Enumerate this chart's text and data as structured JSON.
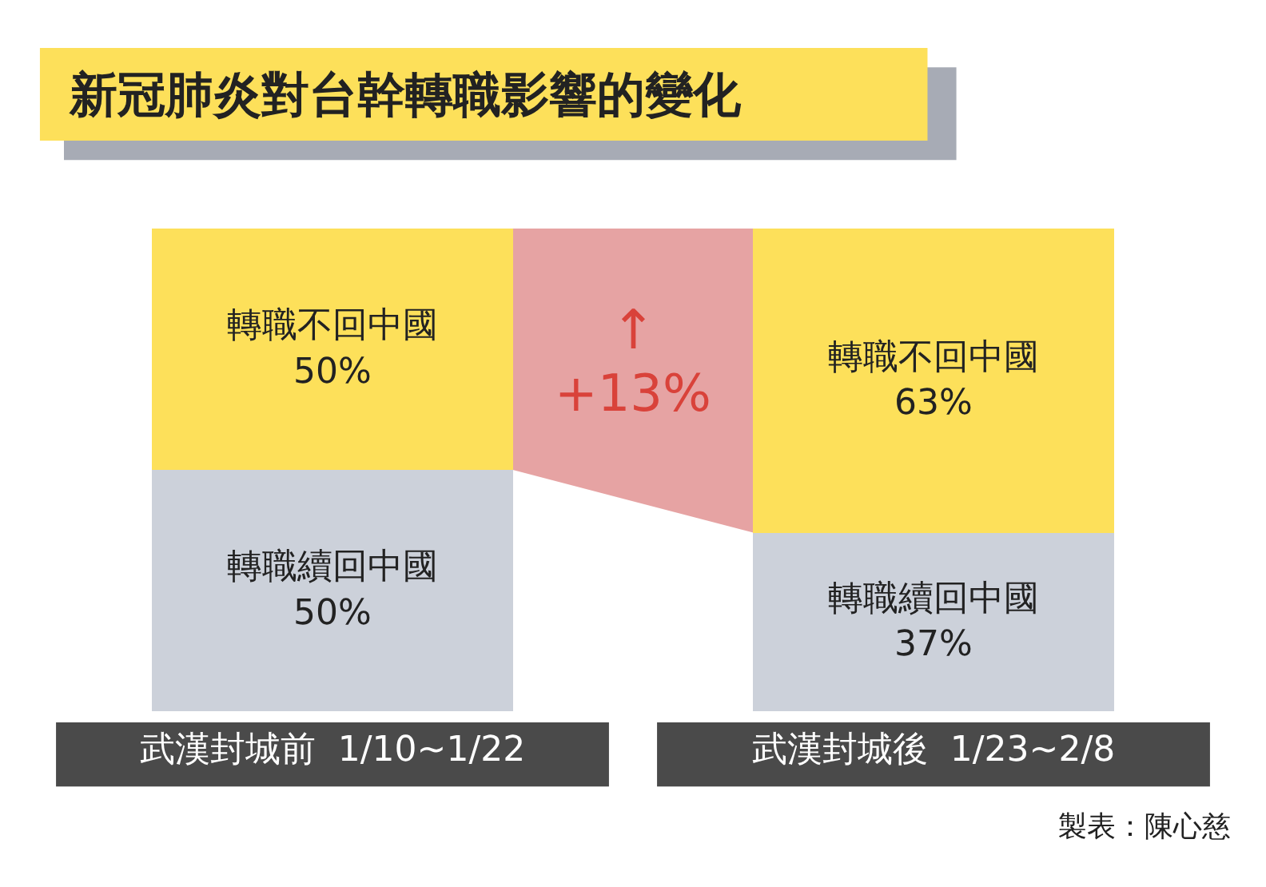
{
  "chart_data": {
    "type": "bar",
    "title": "新冠肺炎對台幹轉職影響的變化",
    "categories": [
      "武漢封城前  1/10~1/22",
      "武漢封城後  1/23~2/8"
    ],
    "stacked": true,
    "series": [
      {
        "name": "轉職續回中國",
        "color": "#ccd1da",
        "values": [
          50,
          37
        ],
        "value_labels": [
          "50%",
          "37%"
        ]
      },
      {
        "name": "轉職不回中國",
        "color": "#fde05a",
        "values": [
          50,
          63
        ],
        "value_labels": [
          "50%",
          "63%"
        ]
      }
    ],
    "annotations": [
      "↑",
      "+13%",
      "製表：陳心慈"
    ],
    "legend": false
  }
}
